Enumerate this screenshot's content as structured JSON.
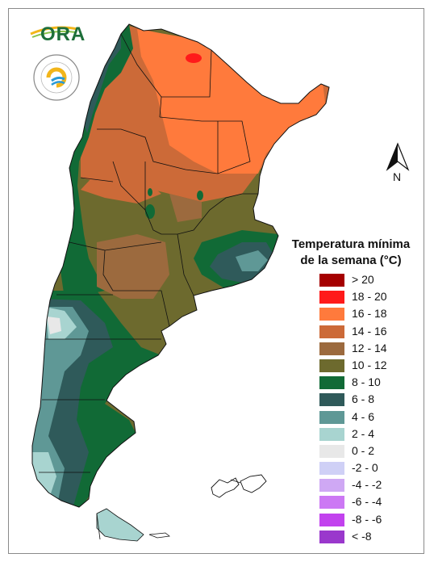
{
  "legend": {
    "title_line1": "Temperatura mínima",
    "title_line2": "de la semana (°C)",
    "items": [
      {
        "label": "> 20",
        "color": "#a50000"
      },
      {
        "label": "18 - 20",
        "color": "#ff1a1a"
      },
      {
        "label": "16 - 18",
        "color": "#ff7a3c"
      },
      {
        "label": "14 - 16",
        "color": "#cc6a38"
      },
      {
        "label": "12 - 14",
        "color": "#9c6a3e"
      },
      {
        "label": "10 - 12",
        "color": "#6d6a2e"
      },
      {
        "label": "8 - 10",
        "color": "#116a36"
      },
      {
        "label": "6 - 8",
        "color": "#2f5a5a"
      },
      {
        "label": "4 - 6",
        "color": "#5f9896"
      },
      {
        "label": "2 - 4",
        "color": "#a8d4d0"
      },
      {
        "label": "0 - 2",
        "color": "#e8e8e8"
      },
      {
        "label": "-2 - 0",
        "color": "#cfd0f6"
      },
      {
        "label": "-4 - -2",
        "color": "#cfa8f4"
      },
      {
        "label": "-6 - -4",
        "color": "#cc78f4"
      },
      {
        "label": "-8 - -6",
        "color": "#c242ee"
      },
      {
        "label": "< -8",
        "color": "#9a38cc"
      }
    ]
  },
  "logos": {
    "ora_text": "ORA",
    "seal_text": "SERVICIO METEOROLÓGICO NACIONAL · ARGENTINA"
  },
  "north_arrow": {
    "label": "N"
  }
}
